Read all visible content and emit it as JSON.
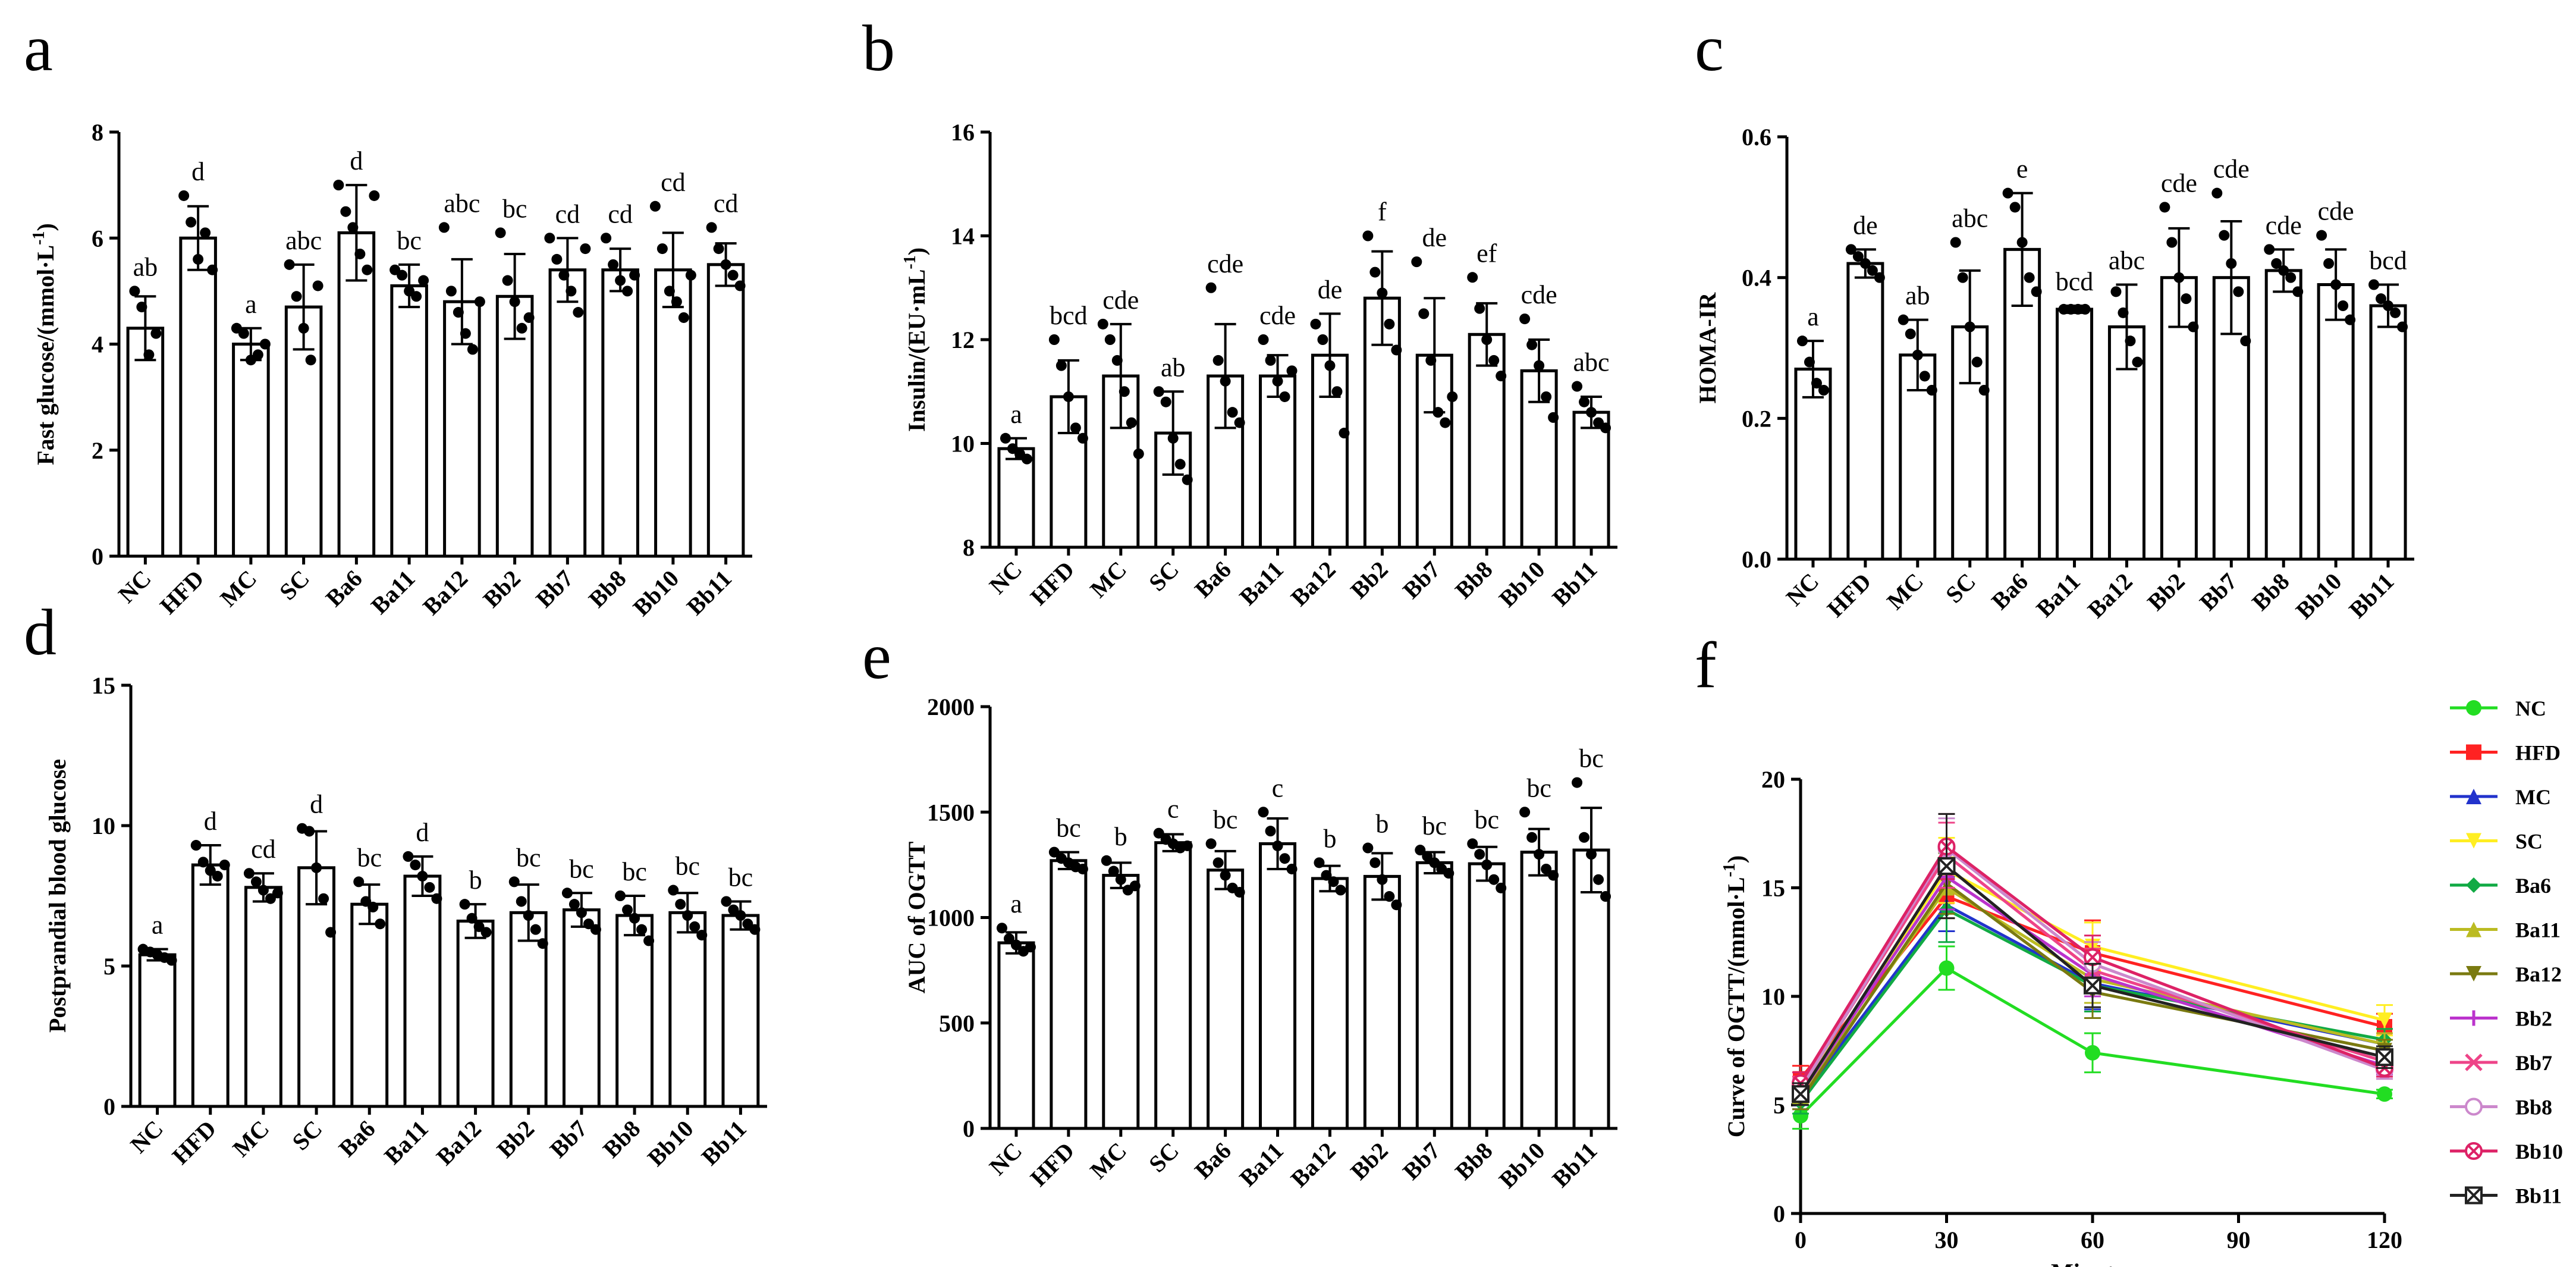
{
  "chart_data": [
    {
      "panel": "a",
      "type": "bar",
      "categories": [
        "NC",
        "HFD",
        "MC",
        "SC",
        "Ba6",
        "Ba11",
        "Ba12",
        "Bb2",
        "Bb7",
        "Bb8",
        "Bb10",
        "Bb11"
      ],
      "values": [
        4.3,
        6.0,
        4.0,
        4.7,
        6.1,
        5.1,
        4.8,
        4.9,
        5.4,
        5.4,
        5.4,
        5.5
      ],
      "errors": [
        0.6,
        0.6,
        0.3,
        0.8,
        0.9,
        0.4,
        0.8,
        0.8,
        0.6,
        0.4,
        0.7,
        0.4
      ],
      "points": [
        [
          5.0,
          4.7,
          3.8,
          4.2
        ],
        [
          6.8,
          6.3,
          5.6,
          6.1,
          5.4
        ],
        [
          4.3,
          4.2,
          3.7,
          3.8,
          4.0
        ],
        [
          5.5,
          4.9,
          4.3,
          3.7,
          5.1
        ],
        [
          7.0,
          6.5,
          6.2,
          5.7,
          5.4,
          6.8
        ],
        [
          5.4,
          5.3,
          5.0,
          4.9,
          5.2
        ],
        [
          6.2,
          5.0,
          4.6,
          4.2,
          3.9,
          4.8
        ],
        [
          6.1,
          5.2,
          4.8,
          4.3,
          4.5
        ],
        [
          6.0,
          5.6,
          5.3,
          5.0,
          4.6,
          5.8
        ],
        [
          6.0,
          5.5,
          5.2,
          5.0,
          5.3
        ],
        [
          6.6,
          5.8,
          5.0,
          4.8,
          4.5,
          5.3
        ],
        [
          6.2,
          5.8,
          5.5,
          5.3,
          5.1
        ]
      ],
      "significance": [
        "ab",
        "d",
        "a",
        "abc",
        "d",
        "bc",
        "abc",
        "bc",
        "cd",
        "cd",
        "cd",
        "cd"
      ],
      "ylabel": "Fast glucose/(mmol·L",
      "ylabel_sup": "-1",
      "ylabel_end": ")",
      "ylim": [
        0,
        8
      ],
      "yticks": [
        0,
        2,
        4,
        6,
        8
      ]
    },
    {
      "panel": "b",
      "type": "bar",
      "categories": [
        "NC",
        "HFD",
        "MC",
        "SC",
        "Ba6",
        "Ba11",
        "Ba12",
        "Bb2",
        "Bb7",
        "Bb8",
        "Bb10",
        "Bb11"
      ],
      "values": [
        9.9,
        10.9,
        11.3,
        10.2,
        11.3,
        11.3,
        11.7,
        12.8,
        11.7,
        12.1,
        11.4,
        10.6
      ],
      "errors": [
        0.2,
        0.7,
        1.0,
        0.8,
        1.0,
        0.4,
        0.8,
        0.9,
        1.1,
        0.6,
        0.6,
        0.3
      ],
      "points": [
        [
          10.1,
          9.9,
          9.8,
          9.7
        ],
        [
          12.0,
          11.5,
          10.9,
          10.3,
          10.1
        ],
        [
          12.3,
          12.0,
          11.6,
          11.0,
          10.4,
          9.8
        ],
        [
          11.0,
          10.8,
          10.1,
          9.6,
          9.3
        ],
        [
          13.0,
          11.6,
          11.2,
          10.6,
          10.4
        ],
        [
          12.0,
          11.6,
          11.2,
          10.9,
          11.4
        ],
        [
          12.3,
          12.0,
          11.5,
          11.0,
          10.2
        ],
        [
          14.0,
          13.3,
          12.9,
          12.3,
          11.8
        ],
        [
          13.5,
          12.5,
          11.6,
          10.6,
          10.4,
          10.9
        ],
        [
          13.2,
          12.6,
          12.0,
          11.6,
          11.3
        ],
        [
          12.4,
          11.9,
          11.5,
          10.9,
          10.5
        ],
        [
          11.1,
          10.8,
          10.6,
          10.4,
          10.3
        ]
      ],
      "significance": [
        "a",
        "bcd",
        "cde",
        "ab",
        "cde",
        "cde",
        "de",
        "f",
        "de",
        "ef",
        "cde",
        "abc"
      ],
      "ylabel": "Insulin/(EU·mL",
      "ylabel_sup": "-1",
      "ylabel_end": ")",
      "ylim": [
        8,
        16
      ],
      "yticks": [
        8,
        10,
        12,
        14,
        16
      ]
    },
    {
      "panel": "c",
      "type": "bar",
      "categories": [
        "NC",
        "HFD",
        "MC",
        "SC",
        "Ba6",
        "Ba11",
        "Ba12",
        "Bb2",
        "Bb7",
        "Bb8",
        "Bb10",
        "Bb11"
      ],
      "values": [
        0.27,
        0.42,
        0.29,
        0.33,
        0.44,
        0.355,
        0.33,
        0.4,
        0.4,
        0.41,
        0.39,
        0.36
      ],
      "errors": [
        0.04,
        0.02,
        0.05,
        0.08,
        0.08,
        0.005,
        0.06,
        0.07,
        0.08,
        0.03,
        0.05,
        0.03
      ],
      "points": [
        [
          0.31,
          0.28,
          0.25,
          0.24
        ],
        [
          0.44,
          0.43,
          0.42,
          0.41,
          0.4
        ],
        [
          0.34,
          0.32,
          0.29,
          0.26,
          0.24
        ],
        [
          0.45,
          0.4,
          0.33,
          0.28,
          0.24
        ],
        [
          0.52,
          0.5,
          0.45,
          0.4,
          0.38
        ],
        [
          0.355,
          0.355,
          0.355,
          0.355
        ],
        [
          0.38,
          0.35,
          0.31,
          0.28
        ],
        [
          0.5,
          0.45,
          0.4,
          0.37,
          0.33
        ],
        [
          0.52,
          0.46,
          0.42,
          0.38,
          0.31
        ],
        [
          0.44,
          0.42,
          0.41,
          0.4,
          0.38
        ],
        [
          0.46,
          0.42,
          0.39,
          0.36,
          0.34
        ],
        [
          0.39,
          0.37,
          0.36,
          0.35,
          0.33
        ]
      ],
      "significance": [
        "a",
        "de",
        "ab",
        "abc",
        "e",
        "bcd",
        "abc",
        "cde",
        "cde",
        "cde",
        "cde",
        "bcd"
      ],
      "ylabel": "HOMA-IR",
      "ylim": [
        0,
        0.6
      ],
      "yticks": [
        "0.0",
        "0.2",
        "0.4",
        "0.6"
      ]
    },
    {
      "panel": "d",
      "type": "bar",
      "categories": [
        "NC",
        "HFD",
        "MC",
        "SC",
        "Ba6",
        "Ba11",
        "Ba12",
        "Bb2",
        "Bb7",
        "Bb8",
        "Bb10",
        "Bb11"
      ],
      "values": [
        5.4,
        8.6,
        7.8,
        8.5,
        7.2,
        8.2,
        6.6,
        6.9,
        7.0,
        6.8,
        6.9,
        6.8
      ],
      "errors": [
        0.2,
        0.7,
        0.5,
        1.3,
        0.7,
        0.7,
        0.6,
        1.0,
        0.6,
        0.7,
        0.7,
        0.5
      ],
      "points": [
        [
          5.6,
          5.5,
          5.4,
          5.3,
          5.2
        ],
        [
          9.3,
          8.7,
          8.4,
          8.2,
          8.6
        ],
        [
          8.3,
          8.0,
          7.7,
          7.4,
          7.6
        ],
        [
          9.9,
          9.8,
          8.5,
          7.4,
          6.2
        ],
        [
          8.0,
          7.3,
          7.1,
          6.5
        ],
        [
          8.9,
          8.6,
          8.2,
          7.8,
          7.4
        ],
        [
          7.2,
          6.7,
          6.4,
          6.2
        ],
        [
          8.0,
          7.3,
          6.8,
          6.3,
          5.8
        ],
        [
          7.6,
          7.2,
          6.9,
          6.5,
          6.3
        ],
        [
          7.5,
          7.0,
          6.7,
          6.3,
          5.9
        ],
        [
          7.7,
          7.2,
          6.8,
          6.4,
          6.1
        ],
        [
          7.3,
          7.0,
          6.8,
          6.5,
          6.3
        ]
      ],
      "significance": [
        "a",
        "d",
        "cd",
        "d",
        "bc",
        "d",
        "b",
        "bc",
        "bc",
        "bc",
        "bc",
        "bc"
      ],
      "ylabel": "Postprandial blood glucose",
      "ylim": [
        0,
        15
      ],
      "yticks": [
        0,
        5,
        10,
        15
      ]
    },
    {
      "panel": "e",
      "type": "bar",
      "categories": [
        "NC",
        "HFD",
        "MC",
        "SC",
        "Ba6",
        "Ba11",
        "Ba12",
        "Bb2",
        "Bb7",
        "Bb8",
        "Bb10",
        "Bb11"
      ],
      "values": [
        880,
        1270,
        1200,
        1355,
        1225,
        1350,
        1185,
        1195,
        1260,
        1255,
        1310,
        1320
      ],
      "errors": [
        50,
        40,
        60,
        40,
        90,
        120,
        60,
        110,
        50,
        80,
        110,
        200
      ],
      "points": [
        [
          950,
          900,
          870,
          840,
          860
        ],
        [
          1310,
          1280,
          1260,
          1240,
          1230
        ],
        [
          1270,
          1220,
          1180,
          1130,
          1150
        ],
        [
          1400,
          1370,
          1350,
          1330,
          1340
        ],
        [
          1350,
          1260,
          1200,
          1140,
          1120
        ],
        [
          1500,
          1410,
          1340,
          1280,
          1230
        ],
        [
          1260,
          1200,
          1170,
          1130
        ],
        [
          1330,
          1260,
          1180,
          1100,
          1060
        ],
        [
          1320,
          1290,
          1260,
          1230,
          1210
        ],
        [
          1350,
          1300,
          1250,
          1180,
          1140
        ],
        [
          1500,
          1380,
          1300,
          1230,
          1200
        ],
        [
          1640,
          1380,
          1300,
          1180,
          1100
        ]
      ],
      "significance": [
        "a",
        "bc",
        "b",
        "c",
        "bc",
        "c",
        "b",
        "b",
        "bc",
        "bc",
        "bc",
        "bc"
      ],
      "ylabel": "AUC of OGTT",
      "ylim": [
        0,
        2000
      ],
      "yticks": [
        0,
        500,
        1000,
        1500,
        2000
      ]
    },
    {
      "panel": "f",
      "type": "line",
      "x": [
        0,
        30,
        60,
        120
      ],
      "xlabel": "Minutes",
      "ylabel": "Curve of OGTT/(mmol·L",
      "ylabel_sup": "-1",
      "ylabel_end": ")",
      "xlim": [
        0,
        120
      ],
      "ylim": [
        0,
        20
      ],
      "xticks": [
        0,
        30,
        60,
        90,
        120
      ],
      "yticks": [
        0,
        5,
        10,
        15,
        20
      ],
      "series": [
        {
          "name": "NC",
          "color": "#22dd22",
          "marker": "circle",
          "values": [
            4.5,
            11.3,
            7.4,
            5.5
          ],
          "errors": [
            0.6,
            1.0,
            0.9,
            0.2
          ]
        },
        {
          "name": "HFD",
          "color": "#ff2222",
          "marker": "square",
          "values": [
            6.2,
            14.6,
            12.0,
            8.6
          ],
          "errors": [
            0.6,
            1.0,
            1.5,
            0.6
          ]
        },
        {
          "name": "MC",
          "color": "#2233cc",
          "marker": "triangle",
          "values": [
            5.3,
            14.2,
            10.6,
            7.8
          ],
          "errors": [
            0.5,
            1.2,
            1.2,
            0.5
          ]
        },
        {
          "name": "SC",
          "color": "#ffee22",
          "marker": "triangle-down",
          "values": [
            5.6,
            15.8,
            12.3,
            8.9
          ],
          "errors": [
            0.5,
            1.5,
            1.1,
            0.7
          ]
        },
        {
          "name": "Ba6",
          "color": "#11aa44",
          "marker": "diamond",
          "values": [
            5.1,
            14.0,
            10.5,
            8.0
          ],
          "errors": [
            0.5,
            1.5,
            1.2,
            0.5
          ]
        },
        {
          "name": "Ba11",
          "color": "#bbbb22",
          "marker": "triangle",
          "values": [
            5.4,
            15.0,
            10.8,
            7.8
          ],
          "errors": [
            0.4,
            1.4,
            1.1,
            0.5
          ]
        },
        {
          "name": "Ba12",
          "color": "#7a7a10",
          "marker": "triangle-down",
          "values": [
            5.2,
            15.2,
            10.2,
            7.5
          ],
          "errors": [
            0.4,
            1.4,
            1.2,
            0.5
          ]
        },
        {
          "name": "Bb2",
          "color": "#bb33cc",
          "marker": "plus",
          "values": [
            5.5,
            15.5,
            11.0,
            6.8
          ],
          "errors": [
            0.5,
            1.5,
            1.0,
            0.4
          ]
        },
        {
          "name": "Bb7",
          "color": "#ee4488",
          "marker": "x",
          "values": [
            5.8,
            16.5,
            11.2,
            7.0
          ],
          "errors": [
            0.5,
            1.5,
            1.0,
            0.5
          ]
        },
        {
          "name": "Bb8",
          "color": "#cc88cc",
          "marker": "circle-open",
          "values": [
            5.7,
            16.8,
            11.5,
            6.6
          ],
          "errors": [
            0.5,
            1.4,
            1.0,
            0.4
          ]
        },
        {
          "name": "Bb10",
          "color": "#dd2266",
          "marker": "circle-x",
          "values": [
            6.0,
            16.9,
            11.8,
            6.7
          ],
          "errors": [
            0.5,
            1.5,
            1.0,
            0.4
          ]
        },
        {
          "name": "Bb11",
          "color": "#222222",
          "marker": "square-x",
          "values": [
            5.5,
            16.0,
            10.5,
            7.2
          ],
          "errors": [
            0.5,
            2.4,
            1.0,
            0.5
          ]
        }
      ]
    }
  ]
}
